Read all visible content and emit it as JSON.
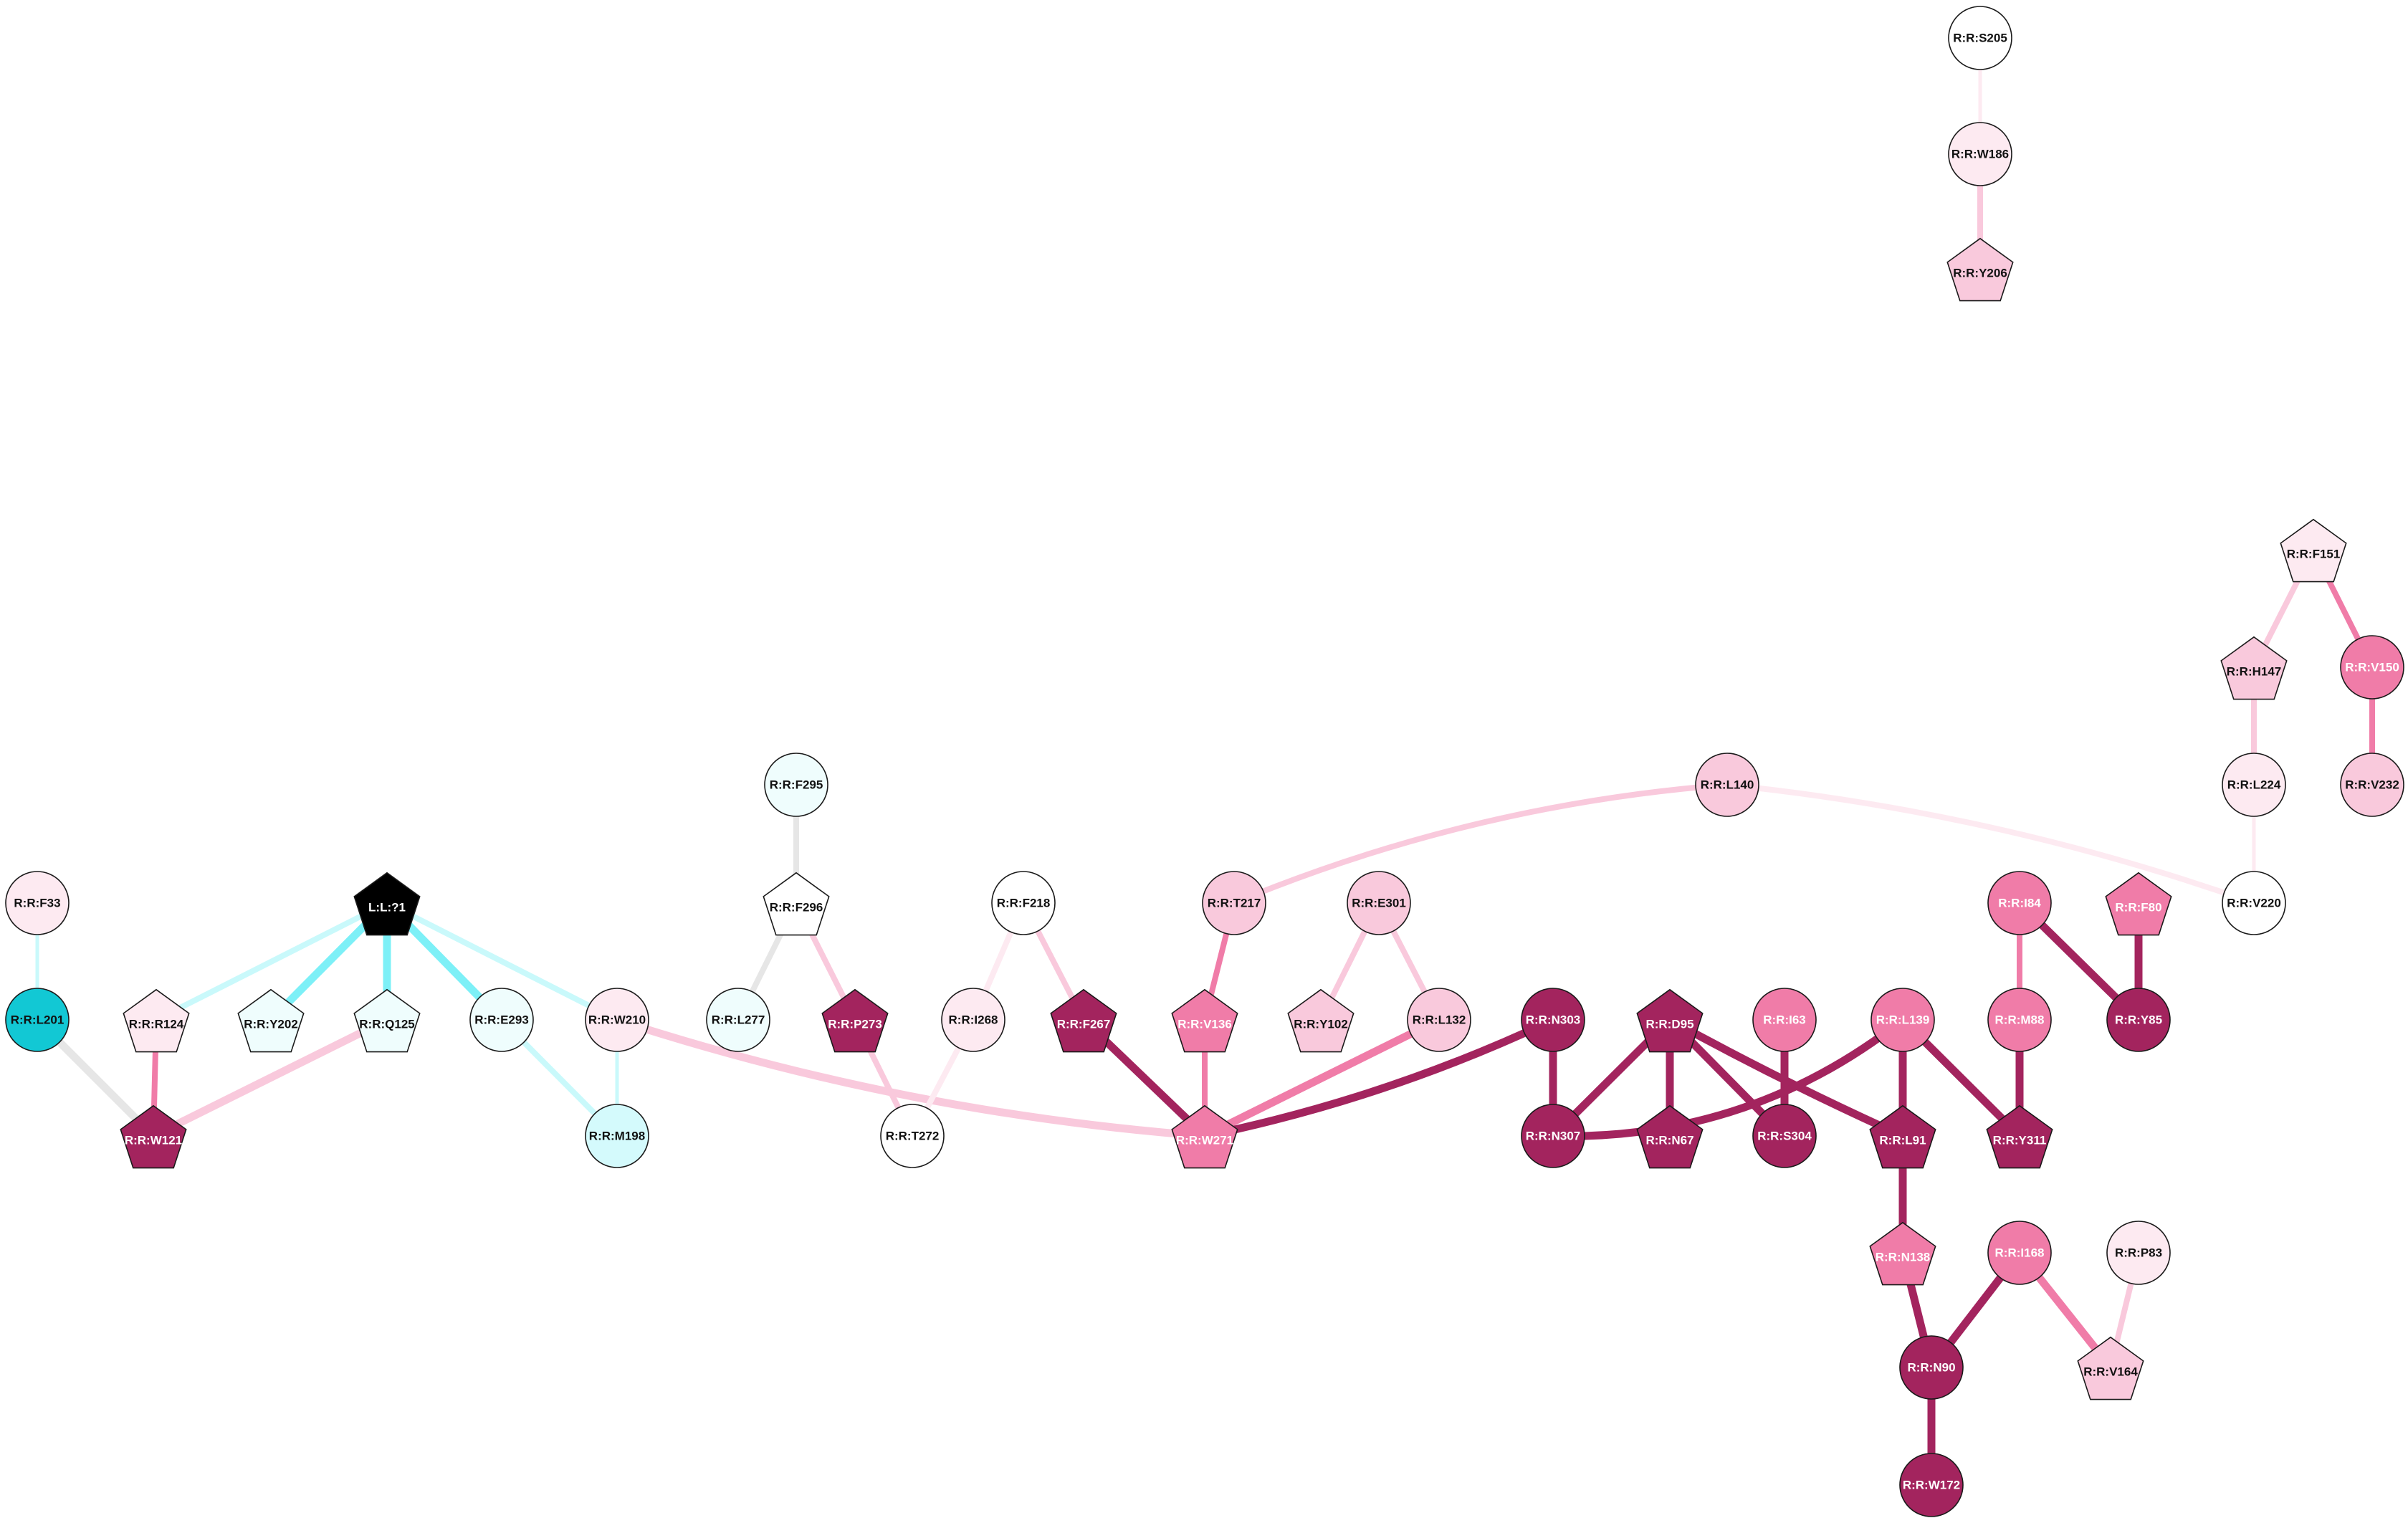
{
  "colors": {
    "magenta_dark": "#a3245e",
    "magenta_mid": "#f07ca8",
    "pink_light": "#f9c9dc",
    "pink_pale": "#fdeaf1",
    "cyan_dark": "#12c8d4",
    "cyan_light": "#d4fafc",
    "cyan_pale": "#effdfd",
    "white": "#ffffff",
    "black": "#000000",
    "edge_grey": "#e6e6e6",
    "edge_cyan": "#7df0f7",
    "edge_cyan_pale": "#c9f9fb"
  },
  "nodes": [
    {
      "id": "S205",
      "label": "R:R:S205",
      "shape": "circle",
      "fill": "white",
      "text": "dark"
    },
    {
      "id": "W186",
      "label": "R:R:W186",
      "shape": "circle",
      "fill": "pink_pale",
      "text": "dark"
    },
    {
      "id": "Y206",
      "label": "R:R:Y206",
      "shape": "pentagon",
      "fill": "pink_light",
      "text": "dark"
    },
    {
      "id": "F151",
      "label": "R:R:F151",
      "shape": "pentagon",
      "fill": "pink_pale",
      "text": "dark"
    },
    {
      "id": "H147",
      "label": "R:R:H147",
      "shape": "pentagon",
      "fill": "pink_light",
      "text": "dark"
    },
    {
      "id": "V150",
      "label": "R:R:V150",
      "shape": "circle",
      "fill": "magenta_mid",
      "text": "light"
    },
    {
      "id": "L224",
      "label": "R:R:L224",
      "shape": "circle",
      "fill": "pink_pale",
      "text": "dark"
    },
    {
      "id": "V232",
      "label": "R:R:V232",
      "shape": "circle",
      "fill": "pink_light",
      "text": "dark"
    },
    {
      "id": "L140",
      "label": "R:R:L140",
      "shape": "circle",
      "fill": "pink_light",
      "text": "dark"
    },
    {
      "id": "V220",
      "label": "R:R:V220",
      "shape": "circle",
      "fill": "white",
      "text": "dark"
    },
    {
      "id": "F295",
      "label": "R:R:F295",
      "shape": "circle",
      "fill": "cyan_pale",
      "text": "dark"
    },
    {
      "id": "F33",
      "label": "R:R:F33",
      "shape": "circle",
      "fill": "pink_pale",
      "text": "dark"
    },
    {
      "id": "L71",
      "label": "L:L:?1",
      "shape": "pentagon",
      "fill": "black",
      "text": "light"
    },
    {
      "id": "F296",
      "label": "R:R:F296",
      "shape": "pentagon",
      "fill": "white",
      "text": "dark"
    },
    {
      "id": "F218",
      "label": "R:R:F218",
      "shape": "circle",
      "fill": "white",
      "text": "dark"
    },
    {
      "id": "T217",
      "label": "R:R:T217",
      "shape": "circle",
      "fill": "pink_light",
      "text": "dark"
    },
    {
      "id": "E301",
      "label": "R:R:E301",
      "shape": "circle",
      "fill": "pink_light",
      "text": "dark"
    },
    {
      "id": "I84",
      "label": "R:R:I84",
      "shape": "circle",
      "fill": "magenta_mid",
      "text": "light"
    },
    {
      "id": "F80",
      "label": "R:R:F80",
      "shape": "pentagon",
      "fill": "magenta_mid",
      "text": "light"
    },
    {
      "id": "L201",
      "label": "R:R:L201",
      "shape": "circle",
      "fill": "cyan_dark",
      "text": "dark"
    },
    {
      "id": "R124",
      "label": "R:R:R124",
      "shape": "pentagon",
      "fill": "pink_pale",
      "text": "dark"
    },
    {
      "id": "Y202",
      "label": "R:R:Y202",
      "shape": "pentagon",
      "fill": "cyan_pale",
      "text": "dark"
    },
    {
      "id": "Q125",
      "label": "R:R:Q125",
      "shape": "pentagon",
      "fill": "cyan_pale",
      "text": "dark"
    },
    {
      "id": "E293",
      "label": "R:R:E293",
      "shape": "circle",
      "fill": "cyan_pale",
      "text": "dark"
    },
    {
      "id": "W210",
      "label": "R:R:W210",
      "shape": "circle",
      "fill": "pink_pale",
      "text": "dark"
    },
    {
      "id": "L277",
      "label": "R:R:L277",
      "shape": "circle",
      "fill": "cyan_pale",
      "text": "dark"
    },
    {
      "id": "P273",
      "label": "R:R:P273",
      "shape": "pentagon",
      "fill": "magenta_dark",
      "text": "light"
    },
    {
      "id": "I268",
      "label": "R:R:I268",
      "shape": "circle",
      "fill": "pink_pale",
      "text": "dark"
    },
    {
      "id": "F267",
      "label": "R:R:F267",
      "shape": "pentagon",
      "fill": "magenta_dark",
      "text": "light"
    },
    {
      "id": "V136",
      "label": "R:R:V136",
      "shape": "pentagon",
      "fill": "magenta_mid",
      "text": "light"
    },
    {
      "id": "Y102",
      "label": "R:R:Y102",
      "shape": "pentagon",
      "fill": "pink_light",
      "text": "dark"
    },
    {
      "id": "L132",
      "label": "R:R:L132",
      "shape": "circle",
      "fill": "pink_light",
      "text": "dark"
    },
    {
      "id": "N303",
      "label": "R:R:N303",
      "shape": "circle",
      "fill": "magenta_dark",
      "text": "light"
    },
    {
      "id": "D95",
      "label": "R:R:D95",
      "shape": "pentagon",
      "fill": "magenta_dark",
      "text": "light"
    },
    {
      "id": "I63",
      "label": "R:R:I63",
      "shape": "circle",
      "fill": "magenta_mid",
      "text": "light"
    },
    {
      "id": "L139",
      "label": "R:R:L139",
      "shape": "circle",
      "fill": "magenta_mid",
      "text": "light"
    },
    {
      "id": "M88",
      "label": "R:R:M88",
      "shape": "circle",
      "fill": "magenta_mid",
      "text": "light"
    },
    {
      "id": "Y85",
      "label": "R:R:Y85",
      "shape": "circle",
      "fill": "magenta_dark",
      "text": "light"
    },
    {
      "id": "W121",
      "label": "R:R:W121",
      "shape": "pentagon",
      "fill": "magenta_dark",
      "text": "light"
    },
    {
      "id": "M198",
      "label": "R:R:M198",
      "shape": "circle",
      "fill": "cyan_light",
      "text": "dark"
    },
    {
      "id": "T272",
      "label": "R:R:T272",
      "shape": "circle",
      "fill": "white",
      "text": "dark"
    },
    {
      "id": "W271",
      "label": "R:R:W271",
      "shape": "pentagon",
      "fill": "magenta_mid",
      "text": "light"
    },
    {
      "id": "N307",
      "label": "R:R:N307",
      "shape": "circle",
      "fill": "magenta_dark",
      "text": "light"
    },
    {
      "id": "N67",
      "label": "R:R:N67",
      "shape": "pentagon",
      "fill": "magenta_dark",
      "text": "light"
    },
    {
      "id": "S304",
      "label": "R:R:S304",
      "shape": "circle",
      "fill": "magenta_dark",
      "text": "light"
    },
    {
      "id": "L91",
      "label": "R:R:L91",
      "shape": "pentagon",
      "fill": "magenta_dark",
      "text": "light"
    },
    {
      "id": "Y311",
      "label": "R:R:Y311",
      "shape": "pentagon",
      "fill": "magenta_dark",
      "text": "light"
    },
    {
      "id": "N138",
      "label": "R:R:N138",
      "shape": "pentagon",
      "fill": "magenta_mid",
      "text": "light"
    },
    {
      "id": "I168",
      "label": "R:R:I168",
      "shape": "circle",
      "fill": "magenta_mid",
      "text": "light"
    },
    {
      "id": "P83",
      "label": "R:R:P83",
      "shape": "circle",
      "fill": "pink_pale",
      "text": "dark"
    },
    {
      "id": "N90",
      "label": "R:R:N90",
      "shape": "circle",
      "fill": "magenta_dark",
      "text": "light"
    },
    {
      "id": "V164",
      "label": "R:R:V164",
      "shape": "pentagon",
      "fill": "pink_light",
      "text": "dark"
    },
    {
      "id": "W172",
      "label": "R:R:W172",
      "shape": "circle",
      "fill": "magenta_dark",
      "text": "light"
    }
  ],
  "edges": [
    {
      "source": "S205",
      "target": "W186",
      "color": "pink_pale",
      "weight": "thin"
    },
    {
      "source": "W186",
      "target": "Y206",
      "color": "pink_light",
      "weight": "medium"
    },
    {
      "source": "F151",
      "target": "H147",
      "color": "pink_light",
      "weight": "medium"
    },
    {
      "source": "F151",
      "target": "V150",
      "color": "magenta_mid",
      "weight": "medium"
    },
    {
      "source": "H147",
      "target": "L224",
      "color": "pink_light",
      "weight": "medium"
    },
    {
      "source": "V150",
      "target": "V232",
      "color": "magenta_mid",
      "weight": "medium"
    },
    {
      "source": "L224",
      "target": "V220",
      "color": "pink_pale",
      "weight": "thin"
    },
    {
      "source": "L140",
      "target": "T217",
      "color": "pink_light",
      "weight": "medium"
    },
    {
      "source": "L140",
      "target": "V220",
      "color": "pink_pale",
      "weight": "medium"
    },
    {
      "source": "F295",
      "target": "F296",
      "color": "edge_grey",
      "weight": "medium"
    },
    {
      "source": "F296",
      "target": "L277",
      "color": "edge_grey",
      "weight": "medium"
    },
    {
      "source": "F296",
      "target": "P273",
      "color": "pink_light",
      "weight": "medium"
    },
    {
      "source": "P273",
      "target": "T272",
      "color": "pink_light",
      "weight": "medium"
    },
    {
      "source": "F33",
      "target": "L201",
      "color": "edge_cyan_pale",
      "weight": "thin"
    },
    {
      "source": "L201",
      "target": "W121",
      "color": "edge_grey",
      "weight": "thick"
    },
    {
      "source": "L71",
      "target": "R124",
      "color": "edge_cyan_pale",
      "weight": "medium"
    },
    {
      "source": "L71",
      "target": "Y202",
      "color": "edge_cyan",
      "weight": "thick"
    },
    {
      "source": "L71",
      "target": "Q125",
      "color": "edge_cyan",
      "weight": "thick"
    },
    {
      "source": "L71",
      "target": "E293",
      "color": "edge_cyan",
      "weight": "thick"
    },
    {
      "source": "L71",
      "target": "W210",
      "color": "edge_cyan_pale",
      "weight": "medium"
    },
    {
      "source": "R124",
      "target": "W121",
      "color": "magenta_mid",
      "weight": "medium"
    },
    {
      "source": "Q125",
      "target": "W121",
      "color": "pink_light",
      "weight": "thick"
    },
    {
      "source": "E293",
      "target": "M198",
      "color": "edge_cyan_pale",
      "weight": "medium"
    },
    {
      "source": "M198",
      "target": "W210",
      "color": "edge_cyan_pale",
      "weight": "thin"
    },
    {
      "source": "W210",
      "target": "W271",
      "color": "pink_light",
      "weight": "thick"
    },
    {
      "source": "F218",
      "target": "I268",
      "color": "pink_pale",
      "weight": "medium"
    },
    {
      "source": "F218",
      "target": "F267",
      "color": "pink_light",
      "weight": "medium"
    },
    {
      "source": "I268",
      "target": "T272",
      "color": "pink_pale",
      "weight": "medium"
    },
    {
      "source": "F267",
      "target": "W271",
      "color": "magenta_dark",
      "weight": "thick"
    },
    {
      "source": "T217",
      "target": "V136",
      "color": "magenta_mid",
      "weight": "medium"
    },
    {
      "source": "V136",
      "target": "W271",
      "color": "magenta_mid",
      "weight": "medium"
    },
    {
      "source": "E301",
      "target": "Y102",
      "color": "pink_light",
      "weight": "medium"
    },
    {
      "source": "E301",
      "target": "L132",
      "color": "pink_light",
      "weight": "medium"
    },
    {
      "source": "L132",
      "target": "W271",
      "color": "magenta_mid",
      "weight": "thick"
    },
    {
      "source": "N303",
      "target": "W271",
      "color": "magenta_dark",
      "weight": "thick"
    },
    {
      "source": "N303",
      "target": "N307",
      "color": "magenta_dark",
      "weight": "thick"
    },
    {
      "source": "D95",
      "target": "N307",
      "color": "magenta_dark",
      "weight": "thick"
    },
    {
      "source": "D95",
      "target": "N67",
      "color": "magenta_dark",
      "weight": "thick"
    },
    {
      "source": "D95",
      "target": "S304",
      "color": "magenta_dark",
      "weight": "thick"
    },
    {
      "source": "D95",
      "target": "L91",
      "color": "magenta_dark",
      "weight": "thick"
    },
    {
      "source": "I63",
      "target": "S304",
      "color": "magenta_dark",
      "weight": "thick"
    },
    {
      "source": "L139",
      "target": "N307",
      "color": "magenta_dark",
      "weight": "thick"
    },
    {
      "source": "L139",
      "target": "L91",
      "color": "magenta_dark",
      "weight": "thick"
    },
    {
      "source": "L139",
      "target": "Y311",
      "color": "magenta_dark",
      "weight": "thick"
    },
    {
      "source": "M88",
      "target": "Y311",
      "color": "magenta_dark",
      "weight": "thick"
    },
    {
      "source": "I84",
      "target": "M88",
      "color": "magenta_mid",
      "weight": "medium"
    },
    {
      "source": "I84",
      "target": "Y85",
      "color": "magenta_dark",
      "weight": "thick"
    },
    {
      "source": "F80",
      "target": "Y85",
      "color": "magenta_dark",
      "weight": "thick"
    },
    {
      "source": "L91",
      "target": "N138",
      "color": "magenta_dark",
      "weight": "thick"
    },
    {
      "source": "N138",
      "target": "N90",
      "color": "magenta_dark",
      "weight": "thick"
    },
    {
      "source": "I168",
      "target": "N90",
      "color": "magenta_dark",
      "weight": "thick"
    },
    {
      "source": "I168",
      "target": "V164",
      "color": "magenta_mid",
      "weight": "thick"
    },
    {
      "source": "P83",
      "target": "V164",
      "color": "pink_light",
      "weight": "medium"
    },
    {
      "source": "N90",
      "target": "W172",
      "color": "magenta_dark",
      "weight": "thick"
    }
  ]
}
